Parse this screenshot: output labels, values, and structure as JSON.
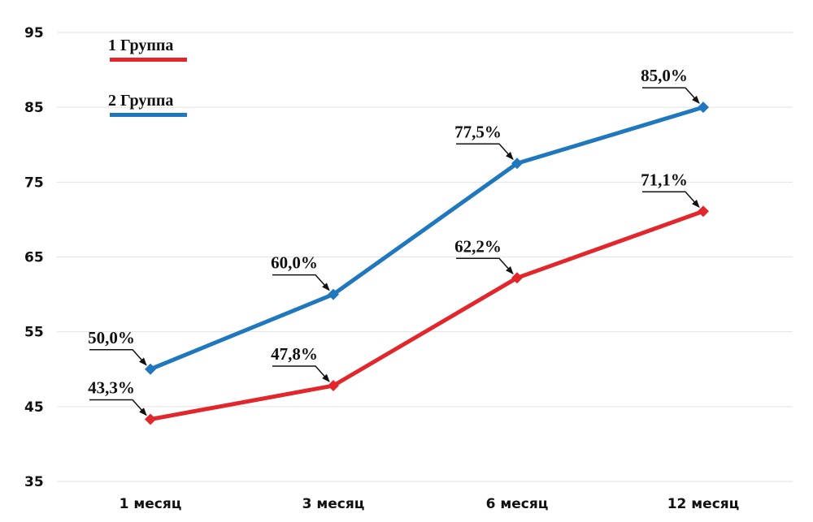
{
  "chart_data": {
    "type": "line",
    "categories": [
      "1 месяц",
      "3 месяц",
      "6 месяц",
      "12 месяц"
    ],
    "series": [
      {
        "name": "1 Группа",
        "color": "#e3262b",
        "values": [
          43.3,
          47.8,
          62.2,
          71.1
        ],
        "labels": [
          "43,3%",
          "47,8%",
          "62,2%",
          "71,1%"
        ]
      },
      {
        "name": "2 Группа",
        "color": "#1f77bd",
        "values": [
          50.0,
          60.0,
          77.5,
          85.0
        ],
        "labels": [
          "50,0%",
          "60,0%",
          "77,5%",
          "85,0%"
        ]
      }
    ],
    "yticks": [
      "95",
      "85",
      "75",
      "65",
      "55",
      "45",
      "35"
    ],
    "ylim": [
      35,
      95
    ],
    "grid": true,
    "legend_position": "top-left"
  }
}
